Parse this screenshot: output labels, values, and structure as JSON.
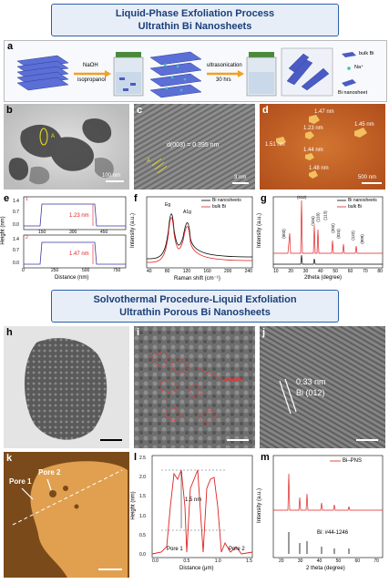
{
  "banners": {
    "top_line1": "Liquid-Phase Exfoliation Process",
    "top_line2": "Ultrathin Bi Nanosheets",
    "mid_line1": "Solvothermal Procedure-Liquid Exfoliation",
    "mid_line2": "Ultrathin Porous Bi Nanosheets"
  },
  "panel_a": {
    "letter": "a",
    "step1_top": "NaOH",
    "step1_bottom": "isopropanol",
    "step2_top": "ultrasonication",
    "step2_bottom": "30 hrs",
    "legend_bulk": "bulk Bi",
    "legend_na": "Na⁺",
    "legend_nanosheet": "Bi nanosheet"
  },
  "panel_b": {
    "letter": "b",
    "scale": "100 nm",
    "marker": "A"
  },
  "panel_c": {
    "letter": "c",
    "dspacing": "d(003) = 0.395 nm",
    "scale": "3 nm",
    "marker": "A"
  },
  "panel_d": {
    "letter": "d",
    "h1": "1.47 nm",
    "h2": "1.23 nm",
    "h3": "1.51 nm",
    "h4": "1.44 nm",
    "h5": "1.45 nm",
    "h6": "1.48 nm",
    "scale": "500 nm"
  },
  "panel_e": {
    "letter": "e",
    "ylabel": "Height (nm)",
    "xlabel": "Distance (nm)",
    "top_ticks_x": [
      "150",
      "300",
      "450"
    ],
    "bot_ticks_x": [
      "0",
      "250",
      "500",
      "750"
    ],
    "ticks_y": [
      "1.4",
      "0.7",
      "0.0"
    ],
    "top_note": "1.23 nm",
    "bot_note": "1.47 nm",
    "top_idx": "1",
    "bot_idx": "2"
  },
  "panel_f": {
    "letter": "f",
    "ylabel": "Intensity (a.u.)",
    "xlabel": "Raman shift (cm⁻¹)",
    "xticks": [
      "40",
      "80",
      "120",
      "160",
      "200",
      "240"
    ],
    "legend": [
      "Bi nanosheets",
      "bulk Bi"
    ],
    "peak1": "Eg",
    "peak2": "A1g"
  },
  "panel_g": {
    "letter": "g",
    "ylabel": "Intensity (a.u.)",
    "xlabel": "2theta (degree)",
    "xticks": [
      "10",
      "20",
      "30",
      "40",
      "50",
      "60",
      "70",
      "80"
    ],
    "legend": [
      "Bi nanosheets",
      "bulk Bi"
    ],
    "peaks": [
      "(003)",
      "(012)",
      "(104)",
      "(110)",
      "(015)",
      "(006)",
      "(113)",
      "(202)",
      "(024)",
      "(107)",
      "(205)",
      "(116)",
      "(122)",
      "(018)",
      "(214)",
      "(009)"
    ]
  },
  "panel_h": {
    "letter": "h"
  },
  "panel_i": {
    "letter": "i",
    "label": "Pores"
  },
  "panel_j": {
    "letter": "j",
    "dspacing": "0.33 nm",
    "plane": "Bi (012)"
  },
  "panel_k": {
    "letter": "k",
    "pore1": "Pore 1",
    "pore2": "Pore 2"
  },
  "panel_l": {
    "letter": "l",
    "ylabel": "Height (nm)",
    "xlabel": "Distance (μm)",
    "yticks": [
      "0.0",
      "0.5",
      "1.0",
      "1.5",
      "2.0",
      "2.5"
    ],
    "xticks": [
      "0.0",
      "0.5",
      "1.0",
      "1.5"
    ],
    "note": "1.5 nm",
    "pore1": "Pore 1",
    "pore2": "Pore 2"
  },
  "panel_m": {
    "letter": "m",
    "ylabel": "Intensity (a.u.)",
    "xlabel": "2 theta (degree)",
    "xticks": [
      "20",
      "30",
      "40",
      "50",
      "60",
      "70"
    ],
    "legend": "Bi–PNS",
    "ref": "Bi: #44-1246"
  },
  "colors": {
    "red": "#e02020",
    "banner_border": "#2d5fa8",
    "banner_bg": "#e8eef8"
  }
}
